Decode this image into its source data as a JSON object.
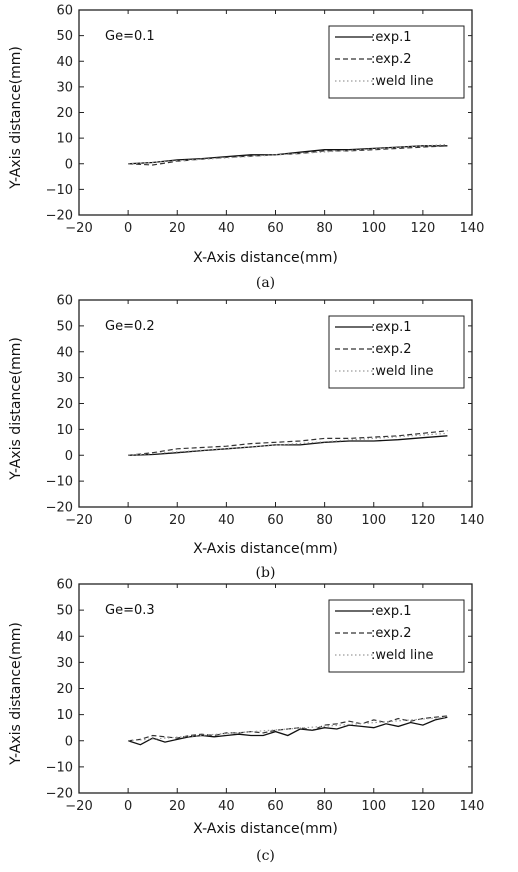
{
  "colors": {
    "axis": "#222222",
    "exp1": "#111111",
    "exp2": "#333333",
    "weld": "#9a9a9a"
  },
  "chart_data": [
    {
      "type": "line",
      "annotation": "Ge=0.1",
      "caption": "(a)",
      "xlabel": "X-Axis distance(mm)",
      "ylabel": "Y-Axis distance(mm)",
      "xlim": [
        -20,
        140
      ],
      "ylim": [
        -20,
        60
      ],
      "xticks": [
        -20,
        0,
        20,
        40,
        60,
        80,
        100,
        120,
        140
      ],
      "yticks": [
        -20,
        -10,
        0,
        10,
        20,
        30,
        40,
        50,
        60
      ],
      "legend_position": "top-right",
      "series": [
        {
          "name": ":exp.1",
          "style": "solid",
          "x": [
            0,
            10,
            20,
            30,
            40,
            50,
            60,
            70,
            80,
            90,
            100,
            110,
            120,
            130
          ],
          "y": [
            0,
            0.5,
            1.5,
            2.0,
            2.8,
            3.5,
            3.5,
            4.5,
            5.5,
            5.5,
            6.0,
            6.5,
            7.0,
            7.0
          ]
        },
        {
          "name": ":exp.2",
          "style": "dashed",
          "x": [
            0,
            10,
            20,
            30,
            40,
            50,
            60,
            70,
            80,
            90,
            100,
            110,
            120,
            130
          ],
          "y": [
            0,
            -0.5,
            1.0,
            1.8,
            2.5,
            3.0,
            3.5,
            4.0,
            5.0,
            5.0,
            5.5,
            6.0,
            6.5,
            7.0
          ]
        },
        {
          "name": ":weld line",
          "style": "dotted",
          "x": [
            0,
            130
          ],
          "y": [
            0,
            7.5
          ]
        }
      ]
    },
    {
      "type": "line",
      "annotation": "Ge=0.2",
      "caption": "(b)",
      "xlabel": "X-Axis distance(mm)",
      "ylabel": "Y-Axis distance(mm)",
      "xlim": [
        -20,
        140
      ],
      "ylim": [
        -20,
        60
      ],
      "xticks": [
        -20,
        0,
        20,
        40,
        60,
        80,
        100,
        120,
        140
      ],
      "yticks": [
        -20,
        -10,
        0,
        10,
        20,
        30,
        40,
        50,
        60
      ],
      "legend_position": "top-right",
      "series": [
        {
          "name": ":exp.1",
          "style": "solid",
          "x": [
            0,
            10,
            20,
            30,
            40,
            50,
            60,
            70,
            80,
            90,
            100,
            110,
            120,
            130
          ],
          "y": [
            0,
            0.3,
            1.0,
            1.8,
            2.5,
            3.2,
            4.0,
            4.0,
            5.0,
            5.5,
            5.5,
            6.0,
            6.8,
            7.5
          ]
        },
        {
          "name": ":exp.2",
          "style": "dashed",
          "x": [
            0,
            10,
            20,
            30,
            40,
            50,
            60,
            70,
            80,
            90,
            100,
            110,
            120,
            130
          ],
          "y": [
            0,
            1.0,
            2.5,
            3.0,
            3.5,
            4.5,
            5.0,
            5.5,
            6.5,
            6.5,
            7.0,
            7.5,
            8.5,
            9.5
          ]
        },
        {
          "name": ":weld line",
          "style": "dotted",
          "x": [
            0,
            130
          ],
          "y": [
            0,
            8.5
          ]
        }
      ]
    },
    {
      "type": "line",
      "annotation": "Ge=0.3",
      "caption": "(c)",
      "xlabel": "X-Axis distance(mm)",
      "ylabel": "Y-Axis distance(mm)",
      "xlim": [
        -20,
        140
      ],
      "ylim": [
        -20,
        60
      ],
      "xticks": [
        -20,
        0,
        20,
        40,
        60,
        80,
        100,
        120,
        140
      ],
      "yticks": [
        -20,
        -10,
        0,
        10,
        20,
        30,
        40,
        50,
        60
      ],
      "legend_position": "top-right",
      "series": [
        {
          "name": ":exp.1",
          "style": "solid",
          "x": [
            0,
            5,
            10,
            15,
            20,
            25,
            30,
            35,
            40,
            45,
            50,
            55,
            60,
            65,
            70,
            75,
            80,
            85,
            90,
            95,
            100,
            105,
            110,
            115,
            120,
            125,
            130
          ],
          "y": [
            0,
            -1.5,
            1.0,
            -0.5,
            0.5,
            1.5,
            2.0,
            1.5,
            2.0,
            2.5,
            2.0,
            2.0,
            3.5,
            2.0,
            4.5,
            4.0,
            5.0,
            4.5,
            6.0,
            5.5,
            5.0,
            6.5,
            5.5,
            7.0,
            6.0,
            8.0,
            9.0
          ]
        },
        {
          "name": ":exp.2",
          "style": "dashed",
          "x": [
            0,
            5,
            10,
            15,
            20,
            25,
            30,
            35,
            40,
            45,
            50,
            55,
            60,
            65,
            70,
            75,
            80,
            85,
            90,
            95,
            100,
            105,
            110,
            115,
            120,
            125,
            130
          ],
          "y": [
            0,
            0.5,
            2.0,
            1.5,
            1.0,
            2.0,
            2.5,
            2.0,
            3.0,
            3.0,
            3.5,
            3.0,
            4.0,
            4.5,
            5.0,
            4.0,
            6.0,
            6.5,
            7.5,
            6.5,
            8.0,
            7.0,
            8.5,
            7.5,
            8.5,
            9.0,
            9.5
          ]
        },
        {
          "name": ":weld line",
          "style": "dotted",
          "x": [
            0,
            130
          ],
          "y": [
            0,
            9.0
          ]
        }
      ]
    }
  ]
}
